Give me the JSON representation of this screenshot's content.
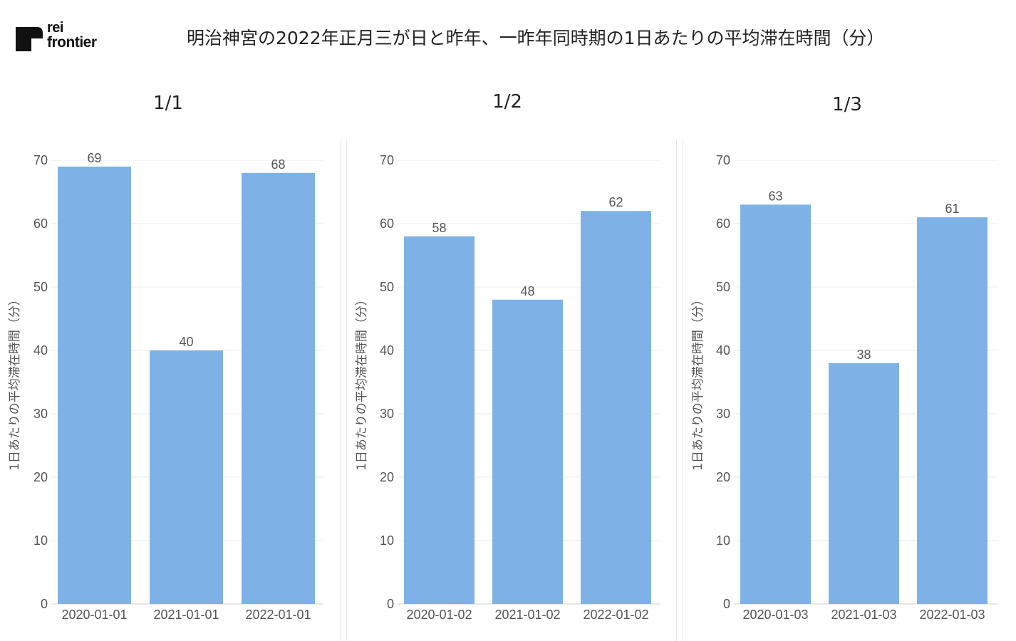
{
  "logo": {
    "line1": "rei",
    "line2": "frontier"
  },
  "title": "明治神宮の2022年正月三が日と昨年、一昨年同時期の1日あたりの平均滞在時間（分）",
  "colors": {
    "bar": "#7eb2e6",
    "grid": "#ececec",
    "text": "#555555"
  },
  "chart_data": [
    {
      "type": "bar",
      "title": "1/1",
      "categories": [
        "2020-01-01",
        "2021-01-01",
        "2022-01-01"
      ],
      "values": [
        69,
        40,
        68
      ],
      "ylabel": "1日あたりの平均滞在時間（分）",
      "ylim": [
        0,
        70
      ],
      "yticks": [
        0,
        10,
        20,
        30,
        40,
        50,
        60,
        70
      ],
      "grid": true
    },
    {
      "type": "bar",
      "title": "1/2",
      "categories": [
        "2020-01-02",
        "2021-01-02",
        "2022-01-02"
      ],
      "values": [
        58,
        48,
        62
      ],
      "ylabel": "1日あたりの平均滞在時間（分）",
      "ylim": [
        0,
        70
      ],
      "yticks": [
        0,
        10,
        20,
        30,
        40,
        50,
        60,
        70
      ],
      "grid": true
    },
    {
      "type": "bar",
      "title": "1/3",
      "categories": [
        "2020-01-03",
        "2021-01-03",
        "2022-01-03"
      ],
      "values": [
        63,
        38,
        61
      ],
      "ylabel": "1日あたりの平均滞在時間（分）",
      "ylim": [
        0,
        70
      ],
      "yticks": [
        0,
        10,
        20,
        30,
        40,
        50,
        60,
        70
      ],
      "grid": true
    }
  ]
}
